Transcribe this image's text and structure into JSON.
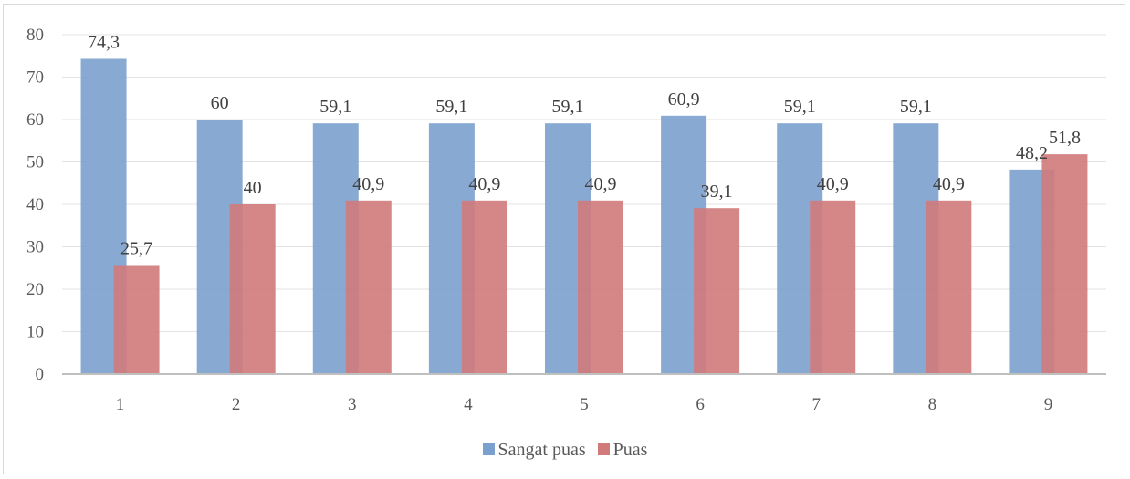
{
  "chart_data": {
    "type": "bar",
    "categories": [
      "1",
      "2",
      "3",
      "4",
      "5",
      "6",
      "7",
      "8",
      "9"
    ],
    "series": [
      {
        "name": "Sangat puas",
        "color": "#7ba0cd",
        "values": [
          74.3,
          60,
          59.1,
          59.1,
          59.1,
          60.9,
          59.1,
          59.1,
          48.2
        ],
        "labels": [
          "74,3",
          "60",
          "59,1",
          "59,1",
          "59,1",
          "60,9",
          "59,1",
          "59,1",
          "48,2"
        ]
      },
      {
        "name": "Puas",
        "color": "#d07a7a",
        "values": [
          25.7,
          40,
          40.9,
          40.9,
          40.9,
          39.1,
          40.9,
          40.9,
          51.8
        ],
        "labels": [
          "25,7",
          "40",
          "40,9",
          "40,9",
          "40,9",
          "39,1",
          "40,9",
          "40,9",
          "51,8"
        ]
      }
    ],
    "y_ticks": [
      "0",
      "10",
      "20",
      "30",
      "40",
      "50",
      "60",
      "70",
      "80"
    ],
    "ylim": [
      0,
      80
    ],
    "grid": true,
    "legend_position": "bottom"
  }
}
